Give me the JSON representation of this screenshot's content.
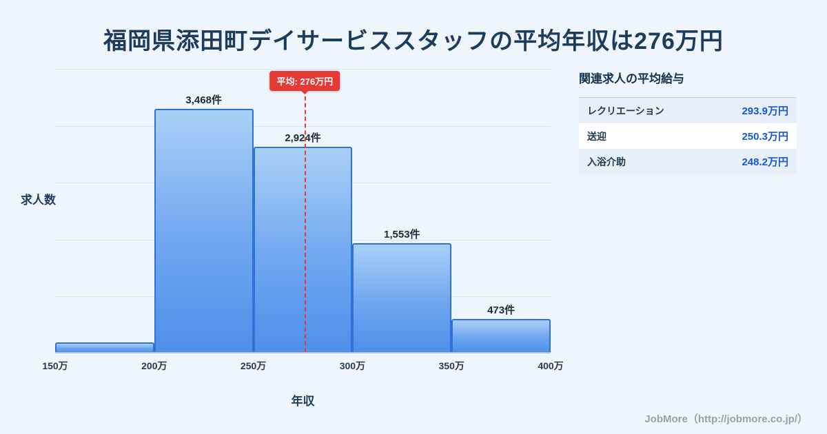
{
  "title": "福岡県添田町デイサービススタッフの平均年収は276万円",
  "chart_data": {
    "type": "bar",
    "title": "",
    "xlabel": "年収",
    "ylabel": "求人数",
    "x_domain": [
      150,
      400
    ],
    "x_ticks": [
      "150万",
      "200万",
      "250万",
      "300万",
      "350万",
      "400万"
    ],
    "bin_edges": [
      150,
      200,
      250,
      300,
      350,
      400
    ],
    "values": [
      140,
      3468,
      2924,
      1553,
      473
    ],
    "bar_labels": [
      "",
      "3,468件",
      "2,924件",
      "1,553件",
      "473件"
    ],
    "ylim": [
      0,
      3800
    ],
    "grid": true,
    "average": {
      "value": 276,
      "label": "平均: 276万円"
    },
    "colors": {
      "bar_fill_top": "#a9cff6",
      "bar_fill_bottom": "#4e8fea",
      "bar_border": "#2f73d9",
      "average_line": "#e53935",
      "background": "#eef5fc",
      "title_text": "#1d3c5c"
    }
  },
  "side_panel": {
    "heading": "関連求人の平均給与",
    "rows": [
      {
        "label": "レクリエーション",
        "value": "293.9万円"
      },
      {
        "label": "送迎",
        "value": "250.3万円"
      },
      {
        "label": "入浴介助",
        "value": "248.2万円"
      }
    ]
  },
  "footer": {
    "credit": "JobMore（http://jobmore.co.jp/）"
  }
}
